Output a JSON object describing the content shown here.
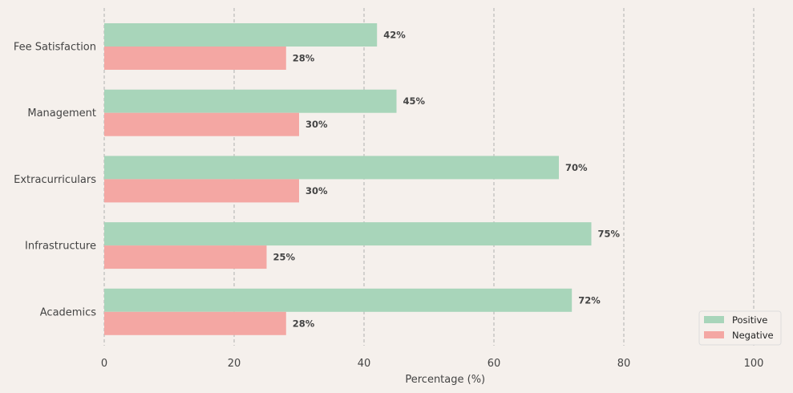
{
  "chart_data": {
    "type": "bar",
    "orientation": "horizontal",
    "categories": [
      "Fee Satisfaction",
      "Management",
      "Extracurriculars",
      "Infrastructure",
      "Academics"
    ],
    "series": [
      {
        "name": "Positive",
        "values": [
          42,
          45,
          70,
          75,
          72
        ],
        "color": "#a8d5ba"
      },
      {
        "name": "Negative",
        "values": [
          28,
          30,
          30,
          25,
          28
        ],
        "color": "#f4a7a3"
      }
    ],
    "value_suffix": "%",
    "xlabel": "Percentage (%)",
    "ylabel": "",
    "title": "",
    "xlim": [
      0,
      105
    ],
    "x_ticks": [
      0,
      20,
      40,
      60,
      80,
      100
    ],
    "grid": "vertical dashed",
    "legend_position": "bottom-right",
    "background_color": "#f5f0ec"
  }
}
